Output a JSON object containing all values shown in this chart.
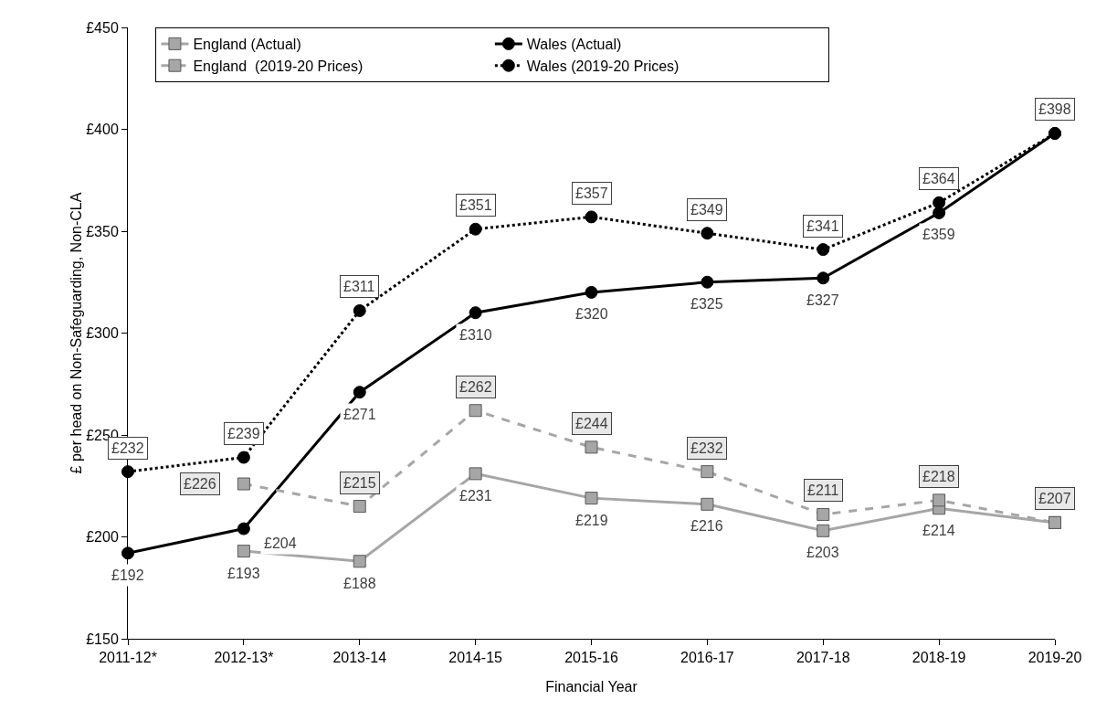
{
  "chart_data": {
    "type": "line",
    "xlabel": "Financial Year",
    "ylabel": "£ per head on Non-Safeguarding, Non-CLA",
    "categories": [
      "2011-12*",
      "2012-13*",
      "2013-14",
      "2014-15",
      "2015-16",
      "2016-17",
      "2017-18",
      "2018-19",
      "2019-20"
    ],
    "ylim": [
      150,
      450
    ],
    "yticks": [
      {
        "value": 150,
        "label": "£150"
      },
      {
        "value": 200,
        "label": "£200"
      },
      {
        "value": 250,
        "label": "£250"
      },
      {
        "value": 300,
        "label": "£300"
      },
      {
        "value": 350,
        "label": "£350"
      },
      {
        "value": 400,
        "label": "£400"
      },
      {
        "value": 450,
        "label": "£450"
      }
    ],
    "grid": false,
    "legend": "top left",
    "series": [
      {
        "name": "England (Actual)",
        "color": "#a6a6a6",
        "marker": "square",
        "line_style": "solid",
        "values": [
          null,
          193,
          188,
          231,
          219,
          216,
          203,
          214,
          207
        ],
        "value_labels": [
          null,
          "£193",
          "£188",
          "£231",
          "£219",
          "£216",
          "£203",
          "£214",
          null
        ]
      },
      {
        "name": "Wales (Actual)",
        "color": "#000000",
        "marker": "circle",
        "line_style": "solid",
        "values": [
          192,
          204,
          271,
          310,
          320,
          325,
          327,
          359,
          398
        ],
        "value_labels": [
          "£192",
          "£204",
          "£271",
          "£310",
          "£320",
          "£325",
          "£327",
          "£359",
          null
        ]
      },
      {
        "name": "England  (2019-20 Prices)",
        "color": "#a6a6a6",
        "marker": "square",
        "line_style": "dashed",
        "values": [
          null,
          226,
          215,
          262,
          244,
          232,
          211,
          218,
          207
        ],
        "value_labels": [
          null,
          "£226",
          "£215",
          "£262",
          "£244",
          "£232",
          "£211",
          "£218",
          "£207"
        ]
      },
      {
        "name": "Wales (2019-20 Prices)",
        "color": "#000000",
        "marker": "circle",
        "line_style": "dotted",
        "values": [
          232,
          239,
          311,
          351,
          357,
          349,
          341,
          364,
          398
        ],
        "value_labels": [
          "£232",
          "£239",
          "£311",
          "£351",
          "£357",
          "£349",
          "£341",
          "£364",
          "£398"
        ]
      }
    ]
  }
}
